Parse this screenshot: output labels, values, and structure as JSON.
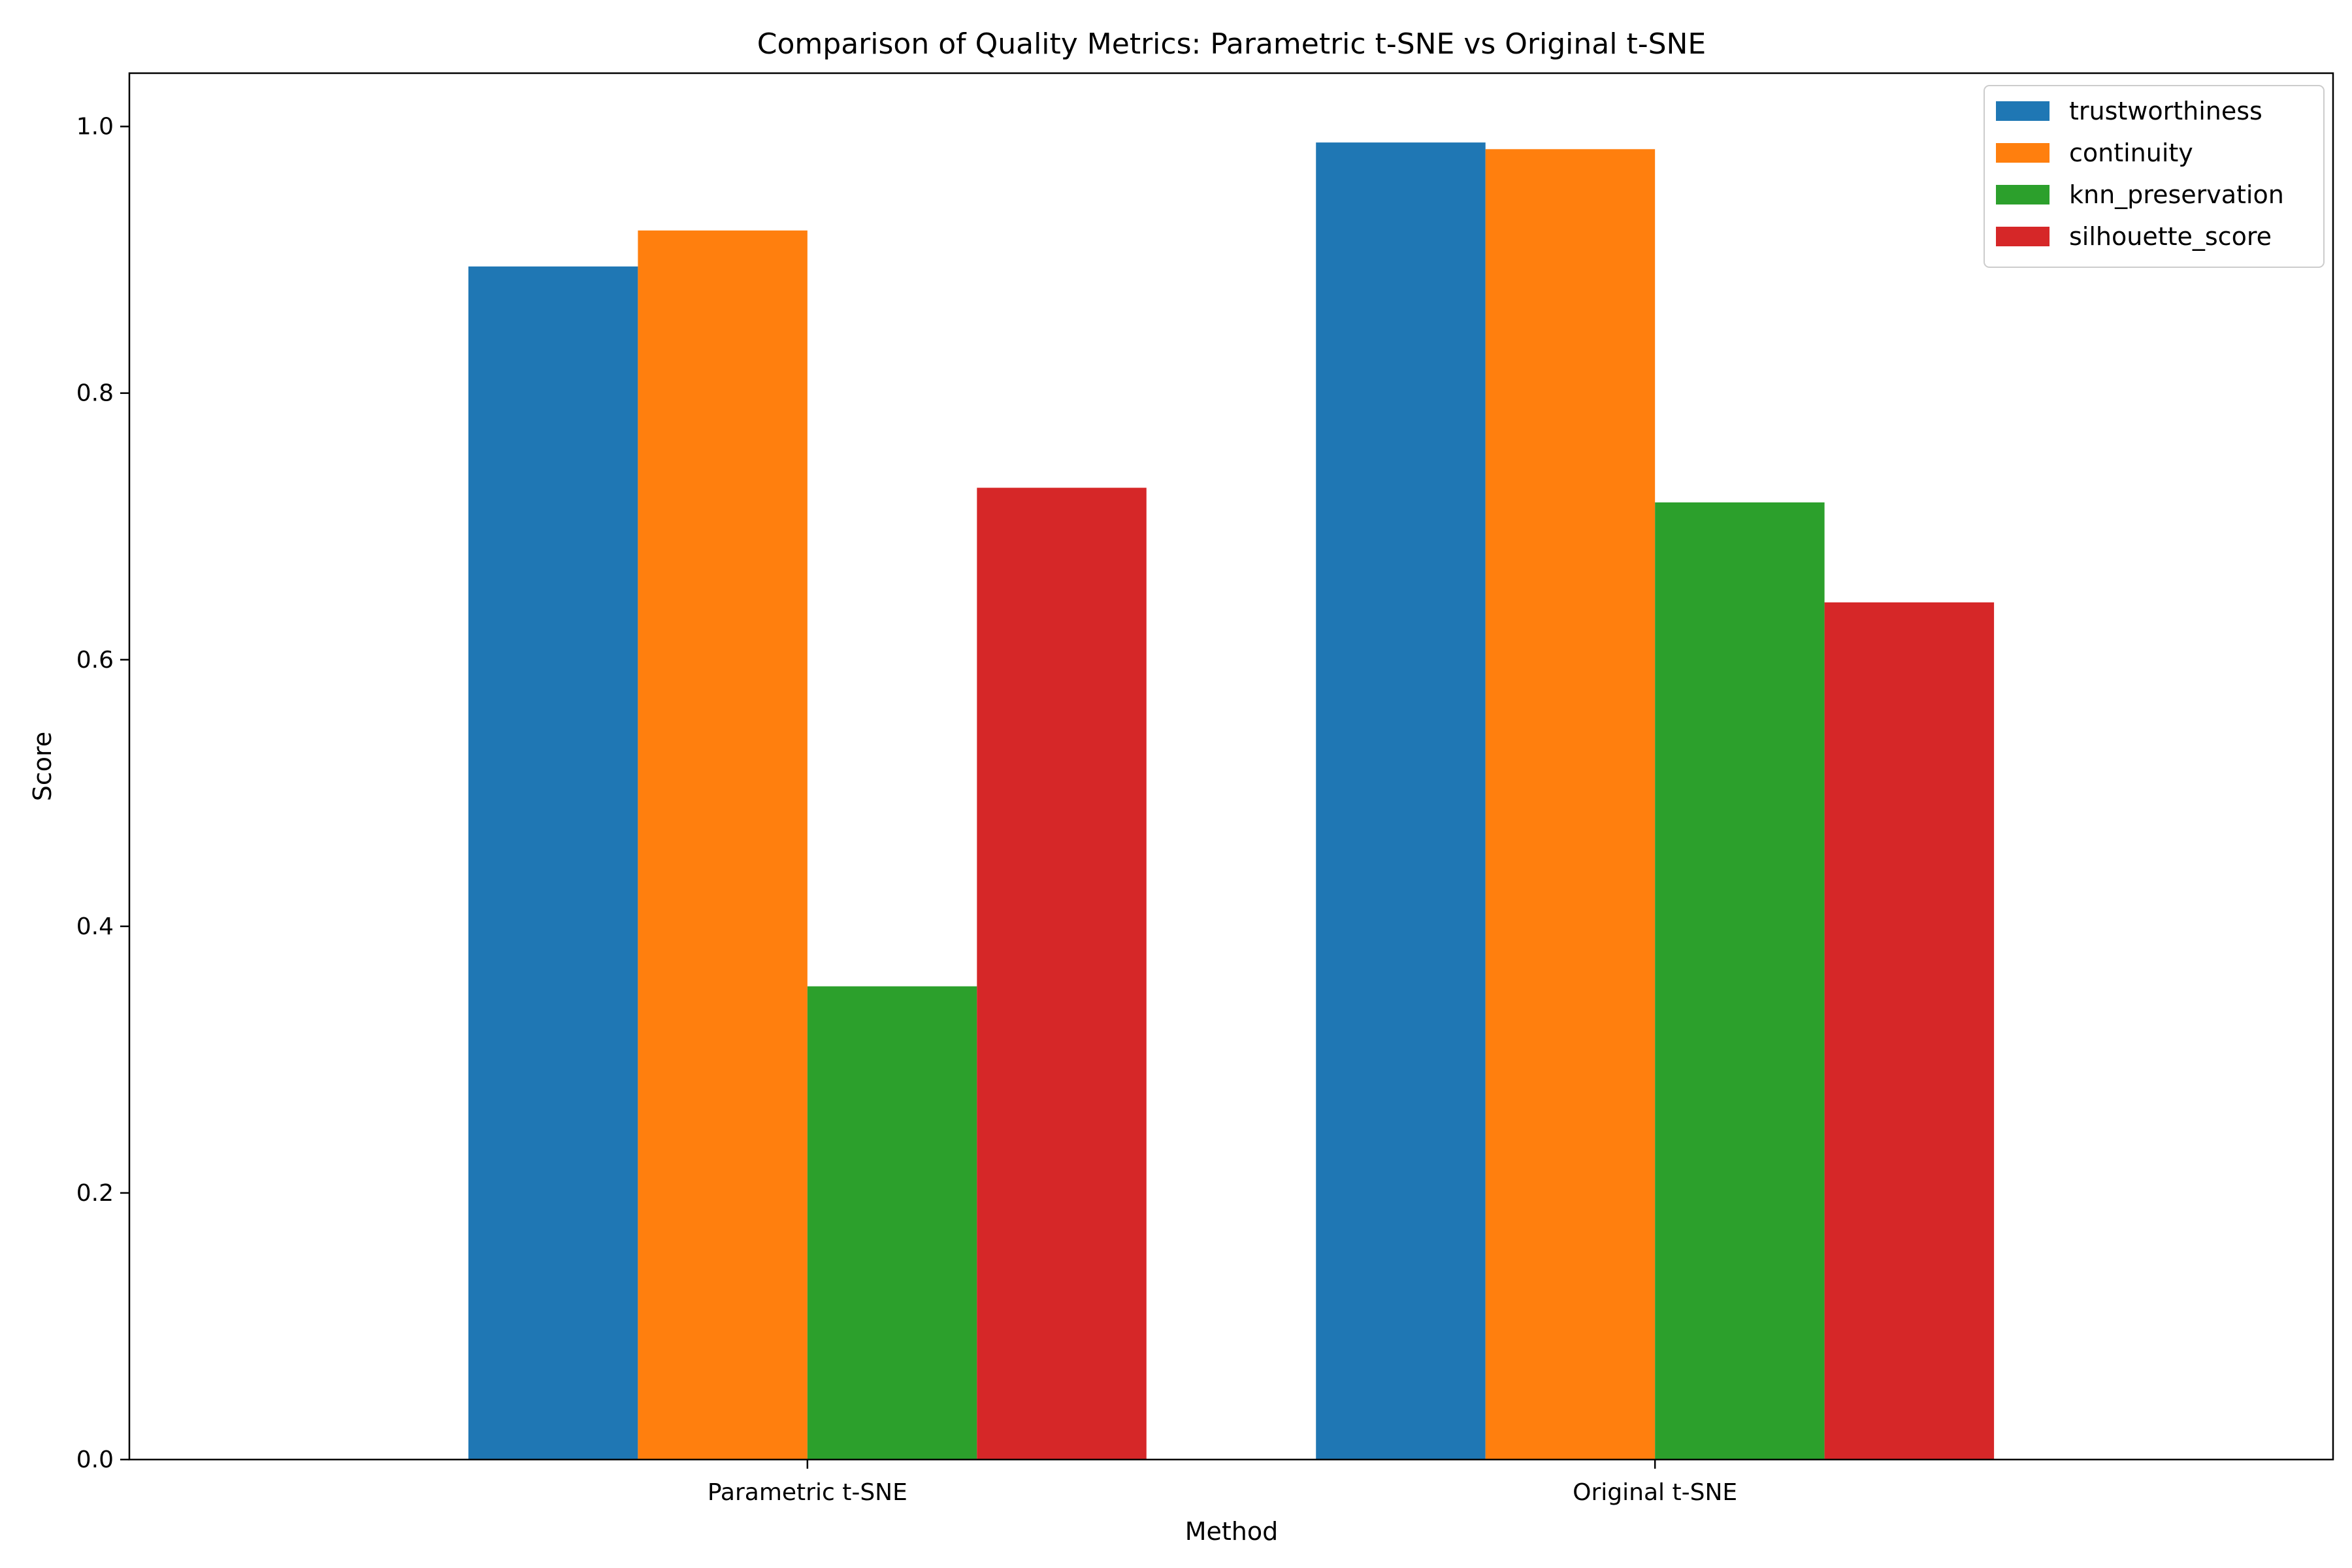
{
  "chart_data": {
    "type": "bar",
    "title": "Comparison of Quality Metrics: Parametric t-SNE vs Original t-SNE",
    "xlabel": "Method",
    "ylabel": "Score",
    "ylim": [
      0,
      1.04
    ],
    "yticks": [
      "0.0",
      "0.2",
      "0.4",
      "0.6",
      "0.8",
      "1.0"
    ],
    "categories": [
      "Parametric t-SNE",
      "Original t-SNE"
    ],
    "series": [
      {
        "name": "trustworthiness",
        "color": "#1f77b4",
        "values": [
          0.895,
          0.988
        ]
      },
      {
        "name": "continuity",
        "color": "#ff7f0e",
        "values": [
          0.922,
          0.983
        ]
      },
      {
        "name": "knn_preservation",
        "color": "#2ca02c",
        "values": [
          0.355,
          0.718
        ]
      },
      {
        "name": "silhouette_score",
        "color": "#d62728",
        "values": [
          0.729,
          0.643
        ]
      }
    ],
    "legend": "top-right",
    "grid": false
  }
}
